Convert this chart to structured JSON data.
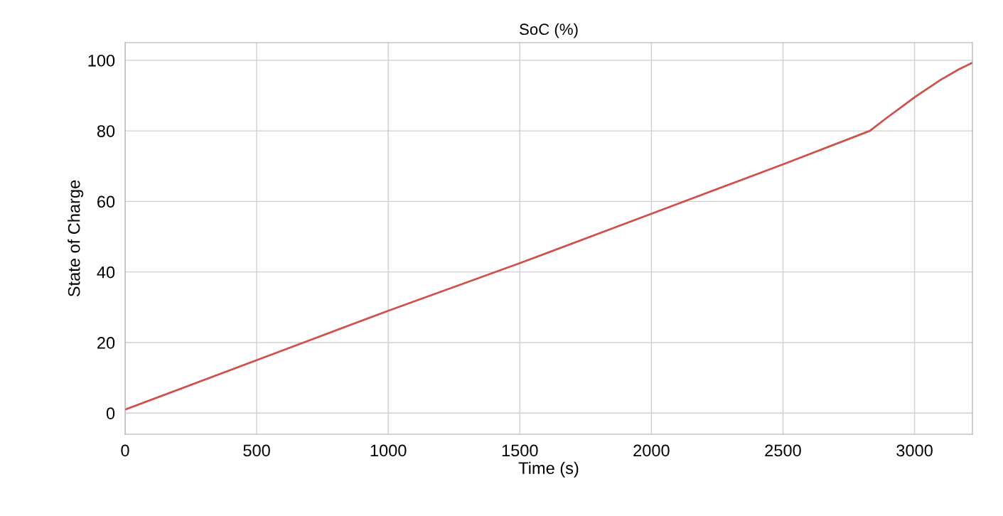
{
  "chart_data": {
    "type": "line",
    "title": "SoC (%)",
    "xlabel": "Time (s)",
    "ylabel": "State of Charge",
    "series": [
      {
        "color": "#d0504c",
        "x": [
          0,
          500,
          1000,
          1500,
          2000,
          2500,
          2830,
          2900,
          3000,
          3100,
          3170,
          3220
        ],
        "values": [
          1,
          15,
          29,
          42.5,
          56.5,
          70.5,
          80,
          84,
          89.5,
          94.5,
          97.5,
          99.3
        ]
      }
    ],
    "xlim": [
      0,
      3220
    ],
    "ylim": [
      -6,
      105
    ],
    "xticks": [
      0,
      500,
      1000,
      1500,
      2000,
      2500,
      3000
    ],
    "yticks": [
      0,
      20,
      40,
      60,
      80,
      100
    ],
    "grid": true,
    "marker": "none",
    "line_style": "solid"
  }
}
